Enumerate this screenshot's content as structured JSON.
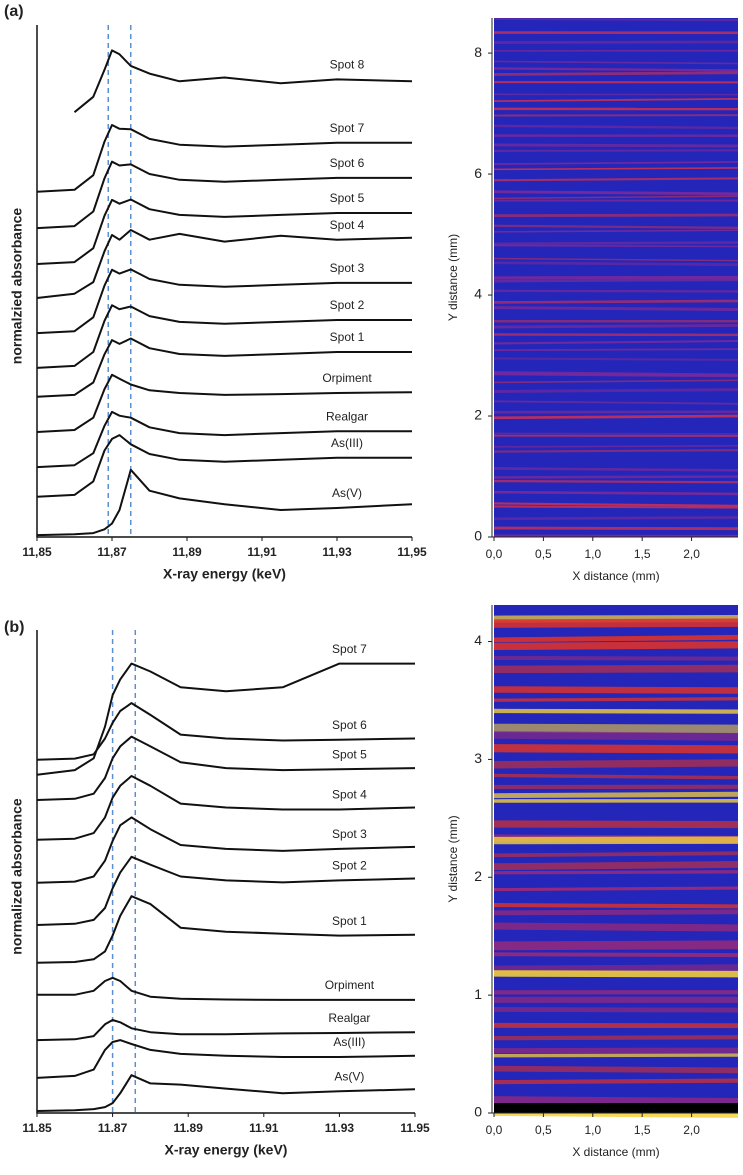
{
  "panel_labels": [
    "(a)",
    "(b)"
  ],
  "chart_data": [
    {
      "type": "line",
      "x_label": "X-ray energy (keV)",
      "y_label": "normalzied absorbance",
      "x": [
        11.85,
        11.86,
        11.865,
        11.868,
        11.87,
        11.872,
        11.875,
        11.88,
        11.888,
        11.9,
        11.915,
        11.93,
        11.95
      ],
      "xlim": [
        11.85,
        11.95
      ],
      "ylim": [
        0,
        13
      ],
      "xticks": [
        {
          "value": 11.85,
          "label": "11,85"
        },
        {
          "value": 11.87,
          "label": "11,87"
        },
        {
          "value": 11.89,
          "label": "11,89"
        },
        {
          "value": 11.91,
          "label": "11,91"
        },
        {
          "value": 11.93,
          "label": "11,93"
        },
        {
          "value": 11.95,
          "label": "11,95"
        }
      ],
      "reference_lines": [
        11.869,
        11.875
      ],
      "reference_color": "#5b8fd0",
      "series": [
        {
          "name": "As(V)",
          "color": "#111",
          "values": [
            0.05,
            0.07,
            0.1,
            0.2,
            0.35,
            0.7,
            1.74,
            1.2,
            1.0,
            0.85,
            0.7,
            0.75,
            0.85
          ]
        },
        {
          "name": "As(III)",
          "color": "#111",
          "values": [
            1.04,
            1.09,
            1.44,
            2.24,
            2.54,
            2.64,
            2.4,
            2.15,
            2.0,
            1.95,
            2.0,
            2.05,
            2.05
          ]
        },
        {
          "name": "Realgar",
          "color": "#111",
          "values": [
            1.81,
            1.86,
            2.17,
            2.88,
            3.24,
            3.14,
            3.09,
            2.84,
            2.69,
            2.64,
            2.69,
            2.74,
            2.74
          ]
        },
        {
          "name": "Orpiment",
          "color": "#111",
          "values": [
            2.72,
            2.77,
            3.09,
            3.83,
            4.2,
            4.1,
            3.95,
            3.8,
            3.73,
            3.68,
            3.7,
            3.73,
            3.75
          ]
        },
        {
          "name": "Spot 1",
          "color": "#111",
          "values": [
            3.63,
            3.68,
            4.0,
            4.73,
            5.1,
            5.0,
            5.14,
            4.89,
            4.74,
            4.69,
            4.74,
            4.79,
            4.79
          ]
        },
        {
          "name": "Spot 2",
          "color": "#111",
          "values": [
            4.38,
            4.43,
            4.79,
            5.6,
            6.0,
            5.9,
            5.97,
            5.72,
            5.57,
            5.52,
            5.57,
            5.62,
            5.62
          ]
        },
        {
          "name": "Spot 3",
          "color": "#111",
          "values": [
            5.28,
            5.33,
            5.69,
            6.51,
            6.92,
            6.82,
            6.93,
            6.68,
            6.53,
            6.48,
            6.53,
            6.58,
            6.58
          ]
        },
        {
          "name": "Spot 4",
          "color": "#111",
          "values": [
            6.19,
            6.3,
            6.6,
            7.4,
            7.82,
            7.7,
            7.95,
            7.7,
            7.85,
            7.65,
            7.8,
            7.7,
            7.75
          ]
        },
        {
          "name": "Spot 5",
          "color": "#111",
          "values": [
            7.07,
            7.12,
            7.48,
            8.32,
            8.73,
            8.63,
            8.74,
            8.49,
            8.34,
            8.29,
            8.34,
            8.39,
            8.39
          ]
        },
        {
          "name": "Spot 6",
          "color": "#111",
          "values": [
            8.0,
            8.05,
            8.43,
            9.29,
            9.72,
            9.62,
            9.65,
            9.4,
            9.25,
            9.2,
            9.25,
            9.3,
            9.3
          ]
        },
        {
          "name": "Spot 7",
          "color": "#111",
          "values": [
            8.94,
            8.99,
            9.37,
            10.24,
            10.67,
            10.57,
            10.56,
            10.31,
            10.16,
            10.11,
            10.16,
            10.21,
            10.21
          ]
        },
        {
          "name": "Spot 8",
          "color": "#111",
          "values": [
            null,
            11.0,
            11.4,
            12.1,
            12.6,
            12.5,
            12.2,
            12.0,
            11.8,
            11.9,
            11.75,
            11.85,
            11.8
          ]
        }
      ]
    },
    {
      "type": "heatmap",
      "x_label": "X distance (mm)",
      "y_label": "Y distance (mm)",
      "xlim": [
        0,
        2.47
      ],
      "ylim": [
        0,
        8.58
      ],
      "xticks": [
        {
          "value": 0,
          "label": "0,0"
        },
        {
          "value": 0.5,
          "label": "0,5"
        },
        {
          "value": 1,
          "label": "1,0"
        },
        {
          "value": 1.5,
          "label": "1,5"
        },
        {
          "value": 2,
          "label": "2,0"
        }
      ],
      "yticks": [
        0,
        2,
        4,
        6,
        8
      ]
    },
    {
      "type": "line",
      "x_label": "X-ray energy (keV)",
      "y_label": "normalized absorbance",
      "x": [
        11.85,
        11.86,
        11.865,
        11.868,
        11.87,
        11.872,
        11.875,
        11.88,
        11.888,
        11.9,
        11.915,
        11.93,
        11.95
      ],
      "xlim": [
        11.85,
        11.95
      ],
      "ylim": [
        0,
        12
      ],
      "xticks": [
        11.85,
        11.87,
        11.89,
        11.91,
        11.93,
        11.95
      ],
      "reference_lines": [
        11.87,
        11.876
      ],
      "reference_color": "#5b8fd0",
      "series": [
        {
          "name": "As(V)",
          "color": "#111",
          "values": [
            0.05,
            0.07,
            0.1,
            0.15,
            0.25,
            0.5,
            0.96,
            0.75,
            0.72,
            0.62,
            0.5,
            0.55,
            0.6
          ]
        },
        {
          "name": "As(III)",
          "color": "#111",
          "values": [
            0.89,
            0.94,
            1.1,
            1.6,
            1.8,
            1.85,
            1.75,
            1.6,
            1.5,
            1.45,
            1.42,
            1.42,
            1.45
          ]
        },
        {
          "name": "Realgar",
          "color": "#111",
          "values": [
            1.85,
            1.87,
            1.95,
            2.25,
            2.36,
            2.3,
            2.15,
            2.05,
            2.0,
            2.0,
            2.02,
            2.03,
            2.05
          ]
        },
        {
          "name": "Orpiment",
          "color": "#111",
          "values": [
            3.0,
            3.0,
            3.1,
            3.35,
            3.43,
            3.35,
            3.1,
            2.95,
            2.9,
            2.88,
            2.87,
            2.87,
            2.87
          ]
        },
        {
          "name": "Spot 1",
          "color": "#111",
          "values": [
            3.81,
            3.83,
            3.9,
            4.1,
            4.5,
            5.0,
            5.5,
            5.3,
            4.7,
            4.6,
            4.55,
            4.5,
            4.52
          ]
        },
        {
          "name": "Spot 2",
          "color": "#111",
          "values": [
            4.77,
            4.8,
            4.9,
            5.2,
            5.7,
            6.1,
            6.5,
            6.3,
            6.0,
            5.9,
            5.85,
            5.9,
            5.95
          ]
        },
        {
          "name": "Spot 3",
          "color": "#111",
          "values": [
            5.84,
            5.87,
            6.0,
            6.4,
            6.9,
            7.3,
            7.5,
            7.2,
            6.8,
            6.7,
            6.65,
            6.7,
            6.75
          ]
        },
        {
          "name": "Spot 4",
          "color": "#111",
          "values": [
            6.93,
            6.96,
            7.1,
            7.5,
            8.0,
            8.3,
            8.55,
            8.3,
            7.85,
            7.75,
            7.7,
            7.7,
            7.75
          ]
        },
        {
          "name": "Spot 5",
          "color": "#111",
          "values": [
            7.94,
            7.97,
            8.1,
            8.5,
            9.0,
            9.3,
            9.55,
            9.3,
            8.9,
            8.75,
            8.7,
            8.72,
            8.75
          ]
        },
        {
          "name": "Spot 6",
          "color": "#111",
          "values": [
            8.96,
            8.99,
            9.1,
            9.5,
            9.9,
            10.2,
            10.4,
            10.1,
            9.6,
            9.5,
            9.45,
            9.47,
            9.5
          ]
        },
        {
          "name": "Spot 7",
          "color": "#111",
          "values": [
            8.58,
            8.7,
            9.0,
            9.8,
            10.6,
            11.0,
            11.4,
            11.2,
            10.8,
            10.7,
            10.8,
            11.4,
            11.4
          ]
        }
      ]
    },
    {
      "type": "heatmap",
      "x_label": "X distance (mm)",
      "y_label": "Y distance (mm)",
      "xlim": [
        0,
        2.47
      ],
      "ylim": [
        0,
        4.31
      ],
      "xticks": [
        {
          "value": 0,
          "label": "0,0"
        },
        {
          "value": 0.5,
          "label": "0,5"
        },
        {
          "value": 1,
          "label": "1,0"
        },
        {
          "value": 1.5,
          "label": "1,5"
        },
        {
          "value": 2,
          "label": "2,0"
        }
      ],
      "yticks": [
        0,
        1,
        2,
        3,
        4
      ]
    }
  ]
}
